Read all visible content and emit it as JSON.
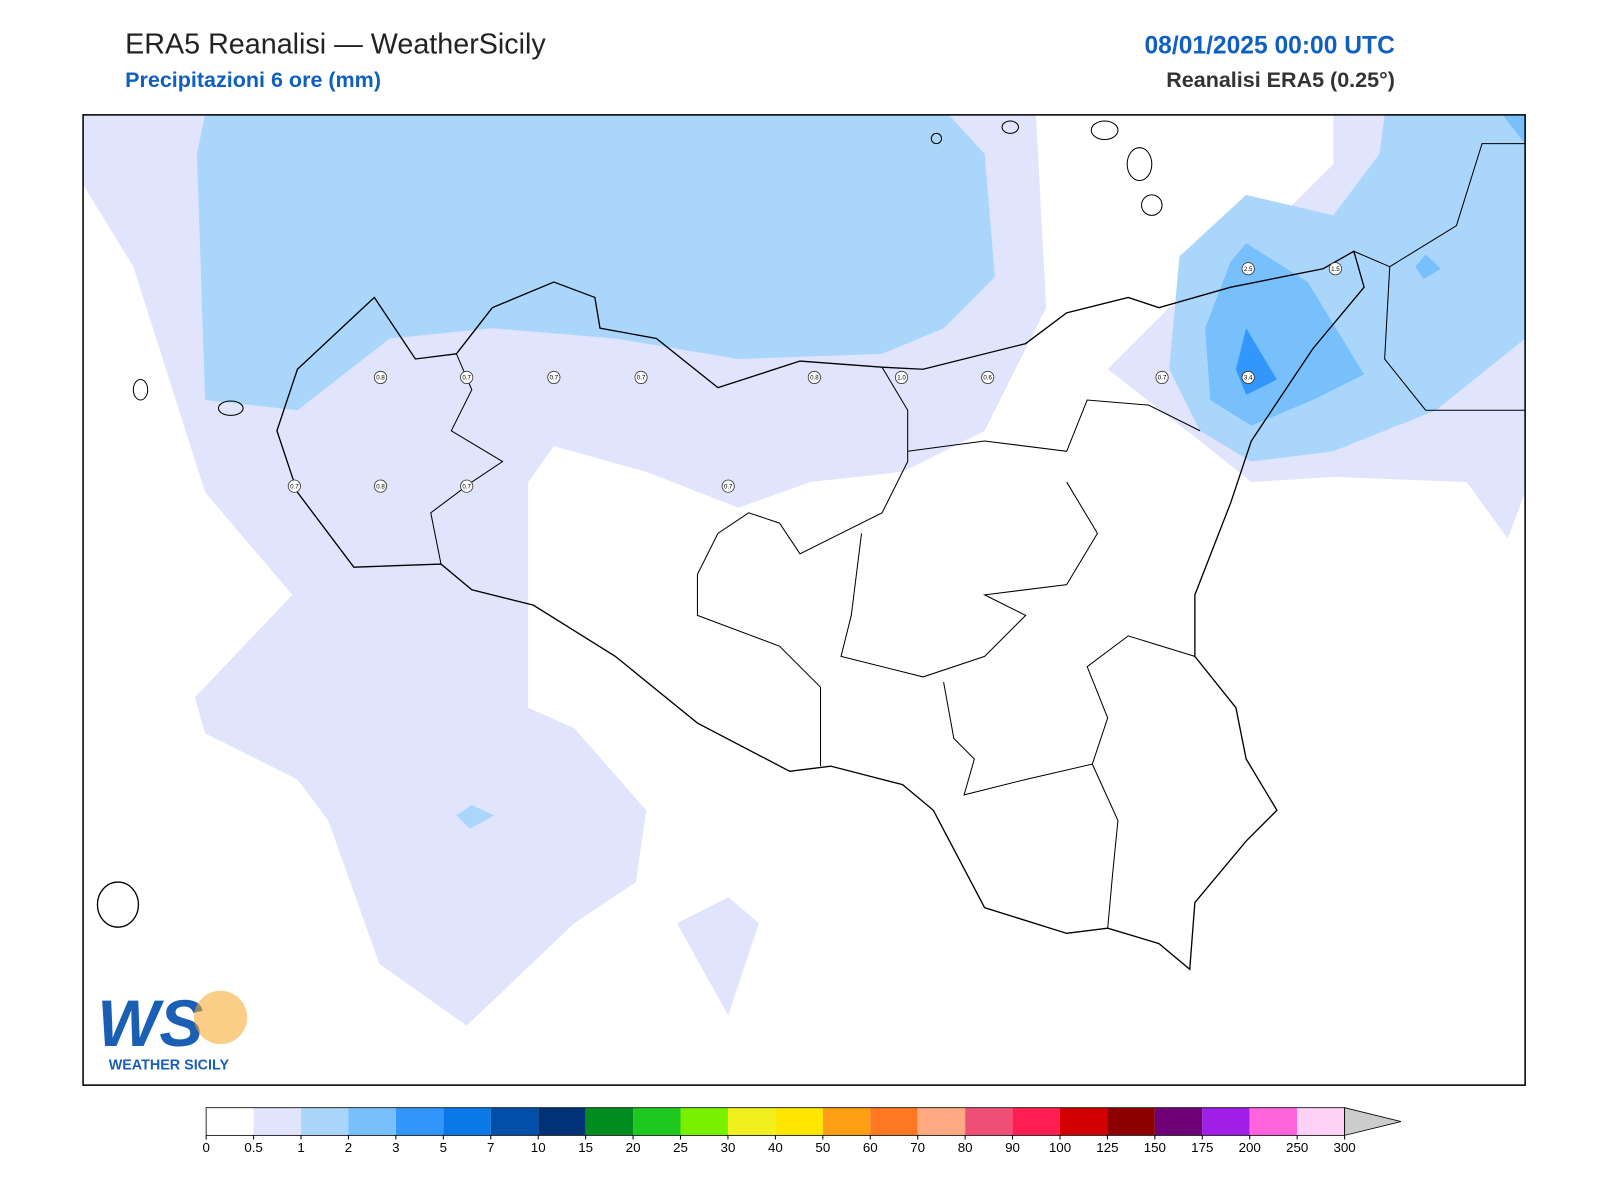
{
  "header": {
    "title": "ERA5 Reanalisi — WeatherSicily",
    "subtitle": "Precipitazioni 6 ore (mm)",
    "datetime": "08/01/2025 00:00 UTC",
    "source": "Reanalisi ERA5 (0.25°)"
  },
  "map": {
    "points": [
      "0.8",
      "0.7",
      "0.7",
      "0.7",
      "0.8",
      "1.0",
      "0.6",
      "0.7",
      "3.4",
      "2.5",
      "1.5",
      "0.7",
      "0.8",
      "0.7",
      "0.7"
    ]
  },
  "logo": {
    "letters": "WS",
    "name": "WEATHER SICILY"
  },
  "colorbar": {
    "ticks": [
      0,
      0.5,
      1,
      2,
      3,
      5,
      7,
      10,
      15,
      20,
      25,
      30,
      40,
      50,
      60,
      70,
      80,
      90,
      100,
      125,
      150,
      175,
      200,
      250,
      300
    ],
    "colors": [
      "#ffffff",
      "#e0e4fc",
      "#aad6fc",
      "#78c0fc",
      "#3296fc",
      "#0a78e6",
      "#0050aa",
      "#003278",
      "#008c1e",
      "#1ec81e",
      "#78f000",
      "#f0f01e",
      "#ffe600",
      "#ff9f14",
      "#ff7820",
      "#ffaa82",
      "#f05078",
      "#ff1e50",
      "#d20000",
      "#8c0000",
      "#6e0078",
      "#a01ee6",
      "#ff64dc",
      "#ffd2f5"
    ],
    "extend_color": "#cccccc"
  }
}
